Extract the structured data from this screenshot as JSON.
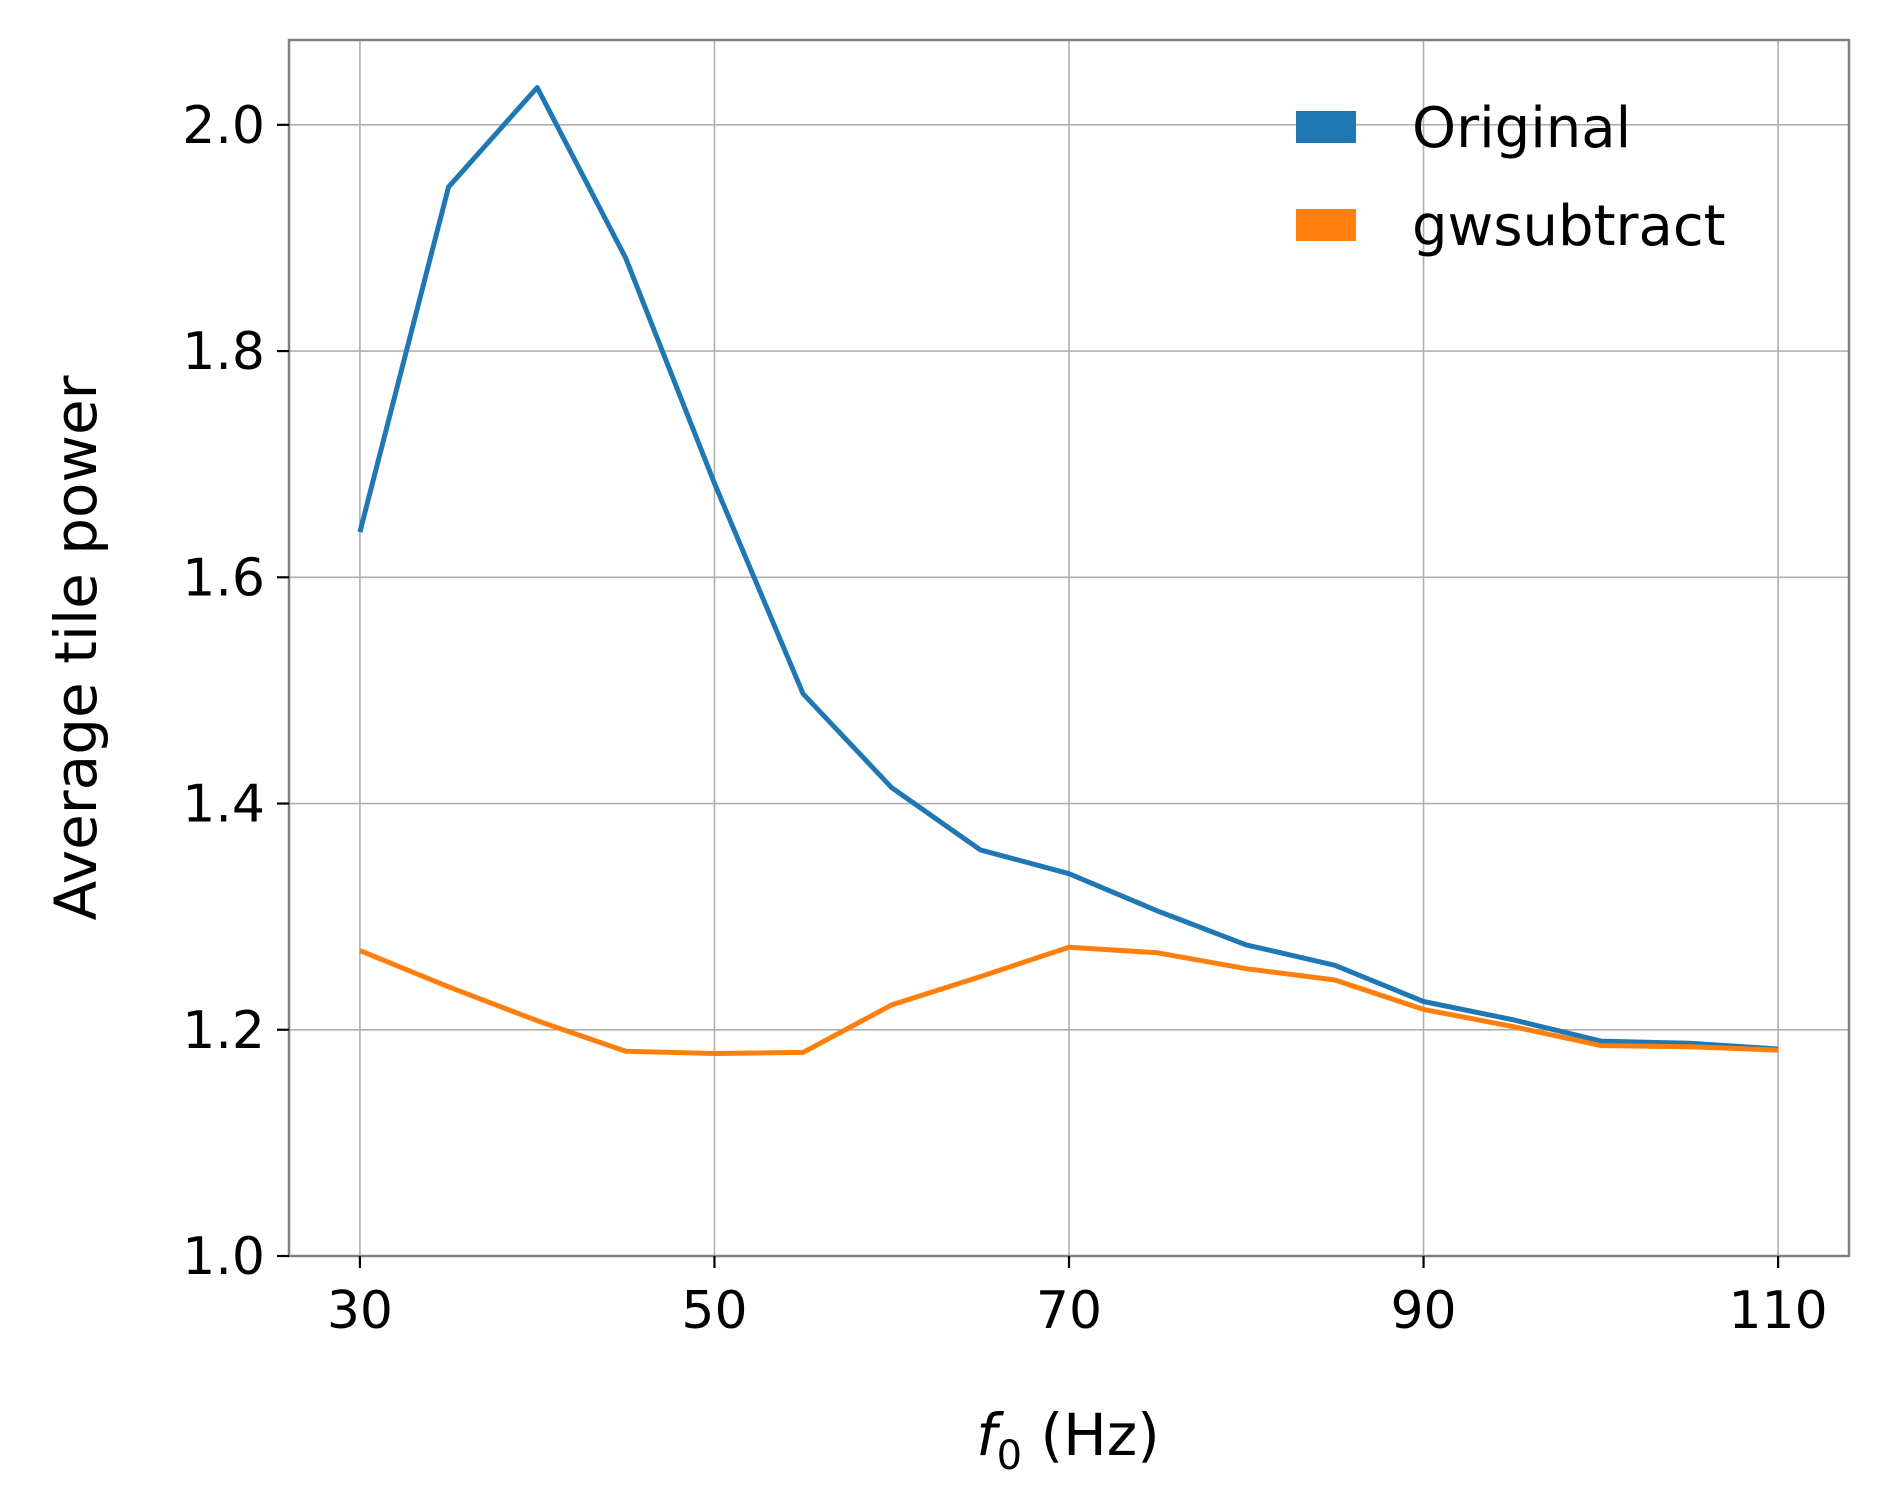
{
  "chart_data": {
    "type": "line",
    "xlabel_main": "f",
    "xlabel_sub": "0",
    "xlabel_unit": " (Hz)",
    "ylabel": "Average tile power",
    "xlim": [
      26,
      114
    ],
    "ylim": [
      1.0,
      2.075
    ],
    "xticks": [
      30,
      50,
      70,
      90,
      110
    ],
    "yticks": [
      1.0,
      1.2,
      1.4,
      1.6,
      1.8,
      2.0
    ],
    "xtick_labels": [
      "30",
      "50",
      "70",
      "90",
      "110"
    ],
    "ytick_labels": [
      "1.0",
      "1.2",
      "1.4",
      "1.6",
      "1.8",
      "2.0"
    ],
    "grid": true,
    "legend_position": "top-right",
    "x": [
      30,
      35,
      40,
      45,
      50,
      55,
      60,
      65,
      70,
      75,
      80,
      85,
      90,
      95,
      100,
      105,
      110
    ],
    "series": [
      {
        "name": "Original",
        "color": "#1f77b4",
        "values": [
          1.64,
          1.945,
          2.033,
          1.882,
          1.683,
          1.497,
          1.414,
          1.359,
          1.338,
          1.305,
          1.275,
          1.257,
          1.225,
          1.209,
          1.19,
          1.188,
          1.183
        ]
      },
      {
        "name": "gwsubtract",
        "color": "#ff7f0e",
        "values": [
          1.27,
          1.238,
          1.208,
          1.181,
          1.179,
          1.18,
          1.222,
          1.247,
          1.273,
          1.268,
          1.254,
          1.244,
          1.218,
          1.203,
          1.186,
          1.185,
          1.182
        ]
      }
    ]
  }
}
